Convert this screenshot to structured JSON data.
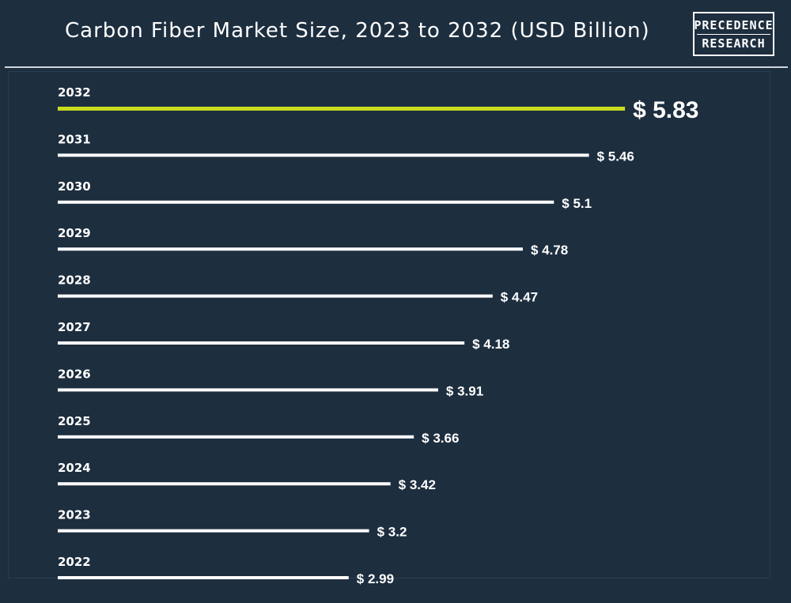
{
  "header": {
    "title": "Carbon Fiber Market Size, 2023 to 2032 (USD Billion)",
    "logo_line1": "PRECEDENCE",
    "logo_line2": "RESEARCH"
  },
  "colors": {
    "background": "#1d2e3f",
    "bar": "#ffffff",
    "highlight": "#c8dc1e"
  },
  "chart_data": {
    "type": "bar",
    "orientation": "horizontal",
    "title": "Carbon Fiber Market Size, 2023 to 2032 (USD Billion)",
    "currency_prefix": "$",
    "categories": [
      "2032",
      "2031",
      "2030",
      "2029",
      "2028",
      "2027",
      "2026",
      "2025",
      "2024",
      "2023",
      "2022"
    ],
    "values": [
      5.83,
      5.46,
      5.1,
      4.78,
      4.47,
      4.18,
      3.91,
      3.66,
      3.42,
      3.2,
      2.99
    ],
    "value_labels": [
      "$ 5.83",
      "$ 5.46",
      "$ 5.1",
      "$ 4.78",
      "$ 4.47",
      "$ 4.18",
      "$ 3.91",
      "$ 3.66",
      "$ 3.42",
      "$ 3.2",
      "$ 2.99"
    ],
    "highlight_category": "2032",
    "grid": false
  }
}
